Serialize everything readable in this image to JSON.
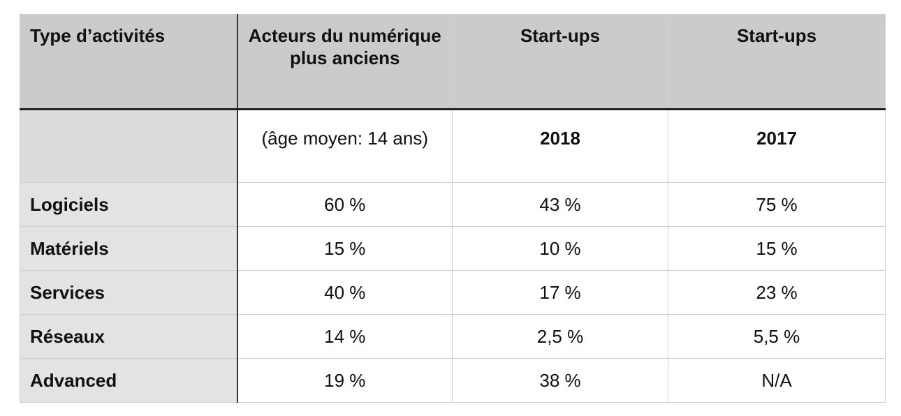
{
  "table": {
    "headers": [
      "Type d’activités",
      "Acteurs du numérique plus anciens",
      "Start-ups",
      "Start-ups"
    ],
    "subheader": {
      "label": "",
      "values": [
        "(âge moyen: 14 ans)",
        "2018",
        "2017"
      ]
    },
    "rows": [
      {
        "label": "Logiciels",
        "values": [
          "60 %",
          "43 %",
          "75 %"
        ]
      },
      {
        "label": "Matériels",
        "values": [
          "15 %",
          "10 %",
          "15 %"
        ]
      },
      {
        "label": "Services",
        "values": [
          "40 %",
          "17 %",
          "23 %"
        ]
      },
      {
        "label": "Réseaux",
        "values": [
          "14 %",
          "2,5 %",
          "5,5 %"
        ]
      },
      {
        "label": "Advanced",
        "values": [
          "19 %",
          "38 %",
          "N/A"
        ]
      }
    ]
  }
}
